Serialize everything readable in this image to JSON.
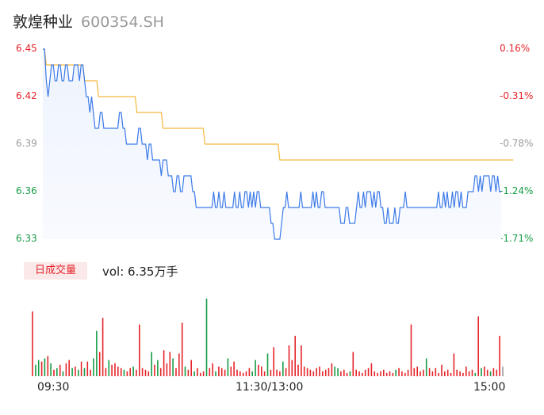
{
  "header": {
    "name": "敦煌种业",
    "code": "600354.SH"
  },
  "volume": {
    "tab_label": "日成交量",
    "vol_label": "vol: 6.35万手"
  },
  "chart_data": {
    "type": "line",
    "title": "",
    "price_axis": {
      "min": 6.33,
      "max": 6.45,
      "ticks": [
        "6.45",
        "6.42",
        "6.39",
        "6.36",
        "6.33"
      ]
    },
    "pct_axis": {
      "ticks": [
        "0.16%",
        "-0.31%",
        "-0.78%",
        "-1.24%",
        "-1.71%"
      ]
    },
    "x_ticks": [
      "09:30",
      "11:30/13:00",
      "15:00"
    ],
    "colors": {
      "price": "#3d7be8",
      "avg": "#f5b83d",
      "up": "#e5242a",
      "down": "#169c46",
      "flat": "#9a9a9a"
    },
    "series": [
      {
        "values": [
          6.45,
          6.45,
          6.43,
          6.42,
          6.43,
          6.44,
          6.44,
          6.43,
          6.43,
          6.44,
          6.44,
          6.43,
          6.43,
          6.44,
          6.44,
          6.43,
          6.43,
          6.43,
          6.44,
          6.44,
          6.44,
          6.43,
          6.44,
          6.44,
          6.43,
          6.42,
          6.42,
          6.41,
          6.42,
          6.41,
          6.4,
          6.4,
          6.4,
          6.41,
          6.41,
          6.4,
          6.4,
          6.4,
          6.4,
          6.4,
          6.4,
          6.4,
          6.4,
          6.4,
          6.41,
          6.41,
          6.4,
          6.4,
          6.39,
          6.39,
          6.39,
          6.39,
          6.39,
          6.39,
          6.39,
          6.4,
          6.4,
          6.39,
          6.39,
          6.39,
          6.38,
          6.39,
          6.39,
          6.38,
          6.38,
          6.38,
          6.38,
          6.38,
          6.37,
          6.38,
          6.38,
          6.38,
          6.37,
          6.37,
          6.37,
          6.36,
          6.36,
          6.37,
          6.37,
          6.36,
          6.36,
          6.37,
          6.37,
          6.37,
          6.37,
          6.37,
          6.36,
          6.36,
          6.35,
          6.35,
          6.35,
          6.35,
          6.35,
          6.35,
          6.35,
          6.35,
          6.35,
          6.35,
          6.36,
          6.35,
          6.35,
          6.36,
          6.35,
          6.35,
          6.36,
          6.35,
          6.35,
          6.35,
          6.35,
          6.35,
          6.36,
          6.35,
          6.35,
          6.36,
          6.35,
          6.35,
          6.36,
          6.36,
          6.35,
          6.36,
          6.35,
          6.36,
          6.35,
          6.36,
          6.36,
          6.35,
          6.35,
          6.35,
          6.35,
          6.35,
          6.35,
          6.34,
          6.34,
          6.33,
          6.33,
          6.33,
          6.33,
          6.34,
          6.35,
          6.35,
          6.36,
          6.35,
          6.35,
          6.35,
          6.35,
          6.35,
          6.35,
          6.35,
          6.36,
          6.35,
          6.35,
          6.35,
          6.35,
          6.35,
          6.35,
          6.36,
          6.35,
          6.36,
          6.35,
          6.35,
          6.36,
          6.36,
          6.35,
          6.35,
          6.35,
          6.35,
          6.35,
          6.35,
          6.35,
          6.35,
          6.35,
          6.34,
          6.34,
          6.34,
          6.35,
          6.35,
          6.34,
          6.34,
          6.34,
          6.34,
          6.35,
          6.36,
          6.35,
          6.35,
          6.36,
          6.35,
          6.36,
          6.36,
          6.36,
          6.35,
          6.36,
          6.35,
          6.36,
          6.36,
          6.35,
          6.35,
          6.34,
          6.34,
          6.35,
          6.34,
          6.34,
          6.34,
          6.35,
          6.34,
          6.34,
          6.35,
          6.35,
          6.35,
          6.36,
          6.35,
          6.35,
          6.35,
          6.35,
          6.35,
          6.35,
          6.35,
          6.35,
          6.35,
          6.35,
          6.35,
          6.35,
          6.35,
          6.35,
          6.35,
          6.35,
          6.35,
          6.35,
          6.36,
          6.35,
          6.35,
          6.36,
          6.35,
          6.36,
          6.35,
          6.35,
          6.36,
          6.35,
          6.36,
          6.36,
          6.35,
          6.36,
          6.35,
          6.35,
          6.35,
          6.36,
          6.36,
          6.36,
          6.36,
          6.37,
          6.37,
          6.36,
          6.37,
          6.36,
          6.37,
          6.37,
          6.37,
          6.37,
          6.36,
          6.37,
          6.37,
          6.36,
          6.37,
          6.36,
          6.36
        ]
      },
      {
        "values": [
          6.45,
          6.45,
          6.44,
          6.44,
          6.44,
          6.44,
          6.44,
          6.44,
          6.44,
          6.44,
          6.44,
          6.44,
          6.44,
          6.44,
          6.44,
          6.44,
          6.44,
          6.44,
          6.44,
          6.44,
          6.44,
          6.44,
          6.44,
          6.44,
          6.43,
          6.43,
          6.43,
          6.43,
          6.43,
          6.43,
          6.43,
          6.43,
          6.42,
          6.42,
          6.42,
          6.42,
          6.42,
          6.42,
          6.42,
          6.42,
          6.42,
          6.42,
          6.42,
          6.42,
          6.42,
          6.42,
          6.42,
          6.42,
          6.42,
          6.42,
          6.42,
          6.42,
          6.42,
          6.42,
          6.41,
          6.41,
          6.41,
          6.41,
          6.41,
          6.41,
          6.41,
          6.41,
          6.41,
          6.41,
          6.41,
          6.41,
          6.41,
          6.41,
          6.41,
          6.4,
          6.4,
          6.4,
          6.4,
          6.4,
          6.4,
          6.4,
          6.4,
          6.4,
          6.4,
          6.4,
          6.4,
          6.4,
          6.4,
          6.4,
          6.4,
          6.4,
          6.4,
          6.4,
          6.4,
          6.4,
          6.4,
          6.4,
          6.4,
          6.39,
          6.39,
          6.39,
          6.39,
          6.39,
          6.39,
          6.39,
          6.39,
          6.39,
          6.39,
          6.39,
          6.39,
          6.39,
          6.39,
          6.39,
          6.39,
          6.39,
          6.39,
          6.39,
          6.39,
          6.39,
          6.39,
          6.39,
          6.39,
          6.39,
          6.39,
          6.39,
          6.39,
          6.39,
          6.39,
          6.39,
          6.39,
          6.39,
          6.39,
          6.39,
          6.39,
          6.39,
          6.39,
          6.39,
          6.39,
          6.39,
          6.39,
          6.39,
          6.38,
          6.38,
          6.38,
          6.38,
          6.38,
          6.38,
          6.38,
          6.38,
          6.38,
          6.38,
          6.38,
          6.38,
          6.38,
          6.38,
          6.38,
          6.38,
          6.38,
          6.38,
          6.38,
          6.38,
          6.38,
          6.38,
          6.38,
          6.38,
          6.38,
          6.38,
          6.38,
          6.38,
          6.38,
          6.38,
          6.38,
          6.38,
          6.38,
          6.38,
          6.38,
          6.38,
          6.38,
          6.38,
          6.38,
          6.38,
          6.38,
          6.38,
          6.38,
          6.38,
          6.38,
          6.38,
          6.38,
          6.38,
          6.38,
          6.38,
          6.38,
          6.38,
          6.38,
          6.38,
          6.38,
          6.38,
          6.38,
          6.38,
          6.38,
          6.38,
          6.38,
          6.38,
          6.38,
          6.38,
          6.38,
          6.38,
          6.38,
          6.38,
          6.38,
          6.38,
          6.38,
          6.38,
          6.38,
          6.38,
          6.38,
          6.38,
          6.38,
          6.38,
          6.38,
          6.38,
          6.38,
          6.38,
          6.38,
          6.38,
          6.38,
          6.38,
          6.38,
          6.38,
          6.38,
          6.38,
          6.38,
          6.38,
          6.38,
          6.38,
          6.38,
          6.38,
          6.38,
          6.38,
          6.38,
          6.38,
          6.38,
          6.38,
          6.38,
          6.38,
          6.38,
          6.38,
          6.38,
          6.38,
          6.38,
          6.38,
          6.38,
          6.38,
          6.38,
          6.38,
          6.38,
          6.38,
          6.38,
          6.38,
          6.38,
          6.38,
          6.38,
          6.38,
          6.38,
          6.38,
          6.38,
          6.38,
          6.38,
          6.38,
          6.38,
          6.38,
          6.38,
          6.38,
          6.38,
          6.38,
          6.38
        ]
      }
    ],
    "volume_bars": [
      {
        "v": 80,
        "c": "up"
      },
      {
        "v": 14,
        "c": "down"
      },
      {
        "v": 20,
        "c": "down"
      },
      {
        "v": 18,
        "c": "up"
      },
      {
        "v": 22,
        "c": "down"
      },
      {
        "v": 25,
        "c": "up"
      },
      {
        "v": 16,
        "c": "down"
      },
      {
        "v": 8,
        "c": "up"
      },
      {
        "v": 10,
        "c": "down"
      },
      {
        "v": 14,
        "c": "up"
      },
      {
        "v": 6,
        "c": "down"
      },
      {
        "v": 16,
        "c": "up"
      },
      {
        "v": 20,
        "c": "up"
      },
      {
        "v": 10,
        "c": "down"
      },
      {
        "v": 12,
        "c": "up"
      },
      {
        "v": 8,
        "c": "down"
      },
      {
        "v": 18,
        "c": "up"
      },
      {
        "v": 10,
        "c": "down"
      },
      {
        "v": 18,
        "c": "up"
      },
      {
        "v": 8,
        "c": "up"
      },
      {
        "v": 22,
        "c": "down"
      },
      {
        "v": 56,
        "c": "down"
      },
      {
        "v": 30,
        "c": "up"
      },
      {
        "v": 72,
        "c": "up"
      },
      {
        "v": 10,
        "c": "up"
      },
      {
        "v": 20,
        "c": "down"
      },
      {
        "v": 14,
        "c": "up"
      },
      {
        "v": 16,
        "c": "up"
      },
      {
        "v": 12,
        "c": "up"
      },
      {
        "v": 10,
        "c": "up"
      },
      {
        "v": 8,
        "c": "down"
      },
      {
        "v": 6,
        "c": "up"
      },
      {
        "v": 10,
        "c": "up"
      },
      {
        "v": 12,
        "c": "down"
      },
      {
        "v": 8,
        "c": "up"
      },
      {
        "v": 64,
        "c": "up"
      },
      {
        "v": 10,
        "c": "up"
      },
      {
        "v": 8,
        "c": "up"
      },
      {
        "v": 6,
        "c": "up"
      },
      {
        "v": 30,
        "c": "down"
      },
      {
        "v": 14,
        "c": "up"
      },
      {
        "v": 20,
        "c": "down"
      },
      {
        "v": 10,
        "c": "up"
      },
      {
        "v": 32,
        "c": "up"
      },
      {
        "v": 16,
        "c": "up"
      },
      {
        "v": 30,
        "c": "up"
      },
      {
        "v": 22,
        "c": "down"
      },
      {
        "v": 10,
        "c": "up"
      },
      {
        "v": 28,
        "c": "up"
      },
      {
        "v": 66,
        "c": "up"
      },
      {
        "v": 12,
        "c": "down"
      },
      {
        "v": 8,
        "c": "up"
      },
      {
        "v": 20,
        "c": "up"
      },
      {
        "v": 6,
        "c": "down"
      },
      {
        "v": 10,
        "c": "up"
      },
      {
        "v": 4,
        "c": "up"
      },
      {
        "v": 6,
        "c": "up"
      },
      {
        "v": 96,
        "c": "down"
      },
      {
        "v": 10,
        "c": "up"
      },
      {
        "v": 16,
        "c": "up"
      },
      {
        "v": 6,
        "c": "down"
      },
      {
        "v": 12,
        "c": "up"
      },
      {
        "v": 10,
        "c": "up"
      },
      {
        "v": 8,
        "c": "up"
      },
      {
        "v": 22,
        "c": "down"
      },
      {
        "v": 12,
        "c": "up"
      },
      {
        "v": 18,
        "c": "up"
      },
      {
        "v": 8,
        "c": "up"
      },
      {
        "v": 6,
        "c": "up"
      },
      {
        "v": 4,
        "c": "up"
      },
      {
        "v": 6,
        "c": "up"
      },
      {
        "v": 10,
        "c": "up"
      },
      {
        "v": 6,
        "c": "down"
      },
      {
        "v": 20,
        "c": "down"
      },
      {
        "v": 14,
        "c": "up"
      },
      {
        "v": 12,
        "c": "up"
      },
      {
        "v": 6,
        "c": "up"
      },
      {
        "v": 28,
        "c": "down"
      },
      {
        "v": 8,
        "c": "up"
      },
      {
        "v": 36,
        "c": "up"
      },
      {
        "v": 8,
        "c": "up"
      },
      {
        "v": 6,
        "c": "up"
      },
      {
        "v": 18,
        "c": "down"
      },
      {
        "v": 10,
        "c": "up"
      },
      {
        "v": 38,
        "c": "up"
      },
      {
        "v": 20,
        "c": "up"
      },
      {
        "v": 50,
        "c": "up"
      },
      {
        "v": 14,
        "c": "up"
      },
      {
        "v": 38,
        "c": "up"
      },
      {
        "v": 12,
        "c": "up"
      },
      {
        "v": 10,
        "c": "up"
      },
      {
        "v": 8,
        "c": "up"
      },
      {
        "v": 6,
        "c": "up"
      },
      {
        "v": 10,
        "c": "up"
      },
      {
        "v": 12,
        "c": "up"
      },
      {
        "v": 6,
        "c": "up"
      },
      {
        "v": 8,
        "c": "up"
      },
      {
        "v": 10,
        "c": "up"
      },
      {
        "v": 16,
        "c": "up"
      },
      {
        "v": 12,
        "c": "down"
      },
      {
        "v": 10,
        "c": "down"
      },
      {
        "v": 6,
        "c": "up"
      },
      {
        "v": 8,
        "c": "up"
      },
      {
        "v": 4,
        "c": "up"
      },
      {
        "v": 6,
        "c": "down"
      },
      {
        "v": 30,
        "c": "up"
      },
      {
        "v": 8,
        "c": "up"
      },
      {
        "v": 6,
        "c": "up"
      },
      {
        "v": 4,
        "c": "up"
      },
      {
        "v": 8,
        "c": "up"
      },
      {
        "v": 10,
        "c": "up"
      },
      {
        "v": 16,
        "c": "up"
      },
      {
        "v": 6,
        "c": "up"
      },
      {
        "v": 4,
        "c": "up"
      },
      {
        "v": 6,
        "c": "up"
      },
      {
        "v": 8,
        "c": "up"
      },
      {
        "v": 4,
        "c": "up"
      },
      {
        "v": 6,
        "c": "up"
      },
      {
        "v": 4,
        "c": "up"
      },
      {
        "v": 8,
        "c": "down"
      },
      {
        "v": 10,
        "c": "up"
      },
      {
        "v": 6,
        "c": "up"
      },
      {
        "v": 4,
        "c": "up"
      },
      {
        "v": 8,
        "c": "up"
      },
      {
        "v": 64,
        "c": "up"
      },
      {
        "v": 10,
        "c": "up"
      },
      {
        "v": 12,
        "c": "up"
      },
      {
        "v": 6,
        "c": "up"
      },
      {
        "v": 8,
        "c": "up"
      },
      {
        "v": 22,
        "c": "down"
      },
      {
        "v": 10,
        "c": "up"
      },
      {
        "v": 6,
        "c": "up"
      },
      {
        "v": 10,
        "c": "up"
      },
      {
        "v": 4,
        "c": "up"
      },
      {
        "v": 14,
        "c": "up"
      },
      {
        "v": 6,
        "c": "up"
      },
      {
        "v": 8,
        "c": "up"
      },
      {
        "v": 4,
        "c": "up"
      },
      {
        "v": 28,
        "c": "up"
      },
      {
        "v": 8,
        "c": "up"
      },
      {
        "v": 6,
        "c": "up"
      },
      {
        "v": 4,
        "c": "up"
      },
      {
        "v": 12,
        "c": "up"
      },
      {
        "v": 6,
        "c": "up"
      },
      {
        "v": 8,
        "c": "up"
      },
      {
        "v": 4,
        "c": "down"
      },
      {
        "v": 74,
        "c": "up"
      },
      {
        "v": 10,
        "c": "down"
      },
      {
        "v": 12,
        "c": "up"
      },
      {
        "v": 8,
        "c": "up"
      },
      {
        "v": 6,
        "c": "down"
      },
      {
        "v": 10,
        "c": "up"
      },
      {
        "v": 8,
        "c": "up"
      },
      {
        "v": 50,
        "c": "up"
      },
      {
        "v": 12,
        "c": "flat"
      }
    ]
  }
}
